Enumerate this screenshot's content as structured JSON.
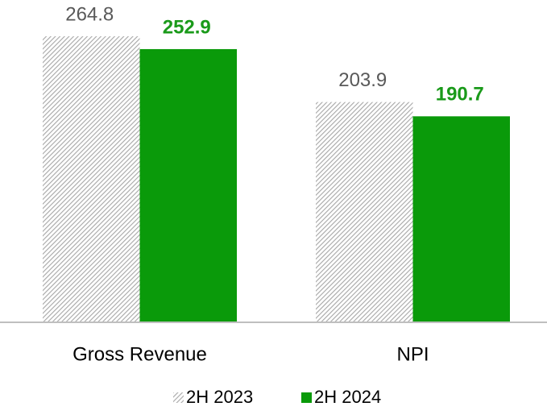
{
  "chart_data": {
    "type": "bar",
    "categories": [
      "Gross Revenue",
      "NPI"
    ],
    "series": [
      {
        "name": "2H 2023",
        "color": "#a6a6a6",
        "pattern": "hatch",
        "values": [
          264.8,
          203.9
        ]
      },
      {
        "name": "2H 2024",
        "color": "#0a9a0a",
        "values": [
          252.9,
          190.7
        ]
      }
    ],
    "legend": "bottom"
  }
}
